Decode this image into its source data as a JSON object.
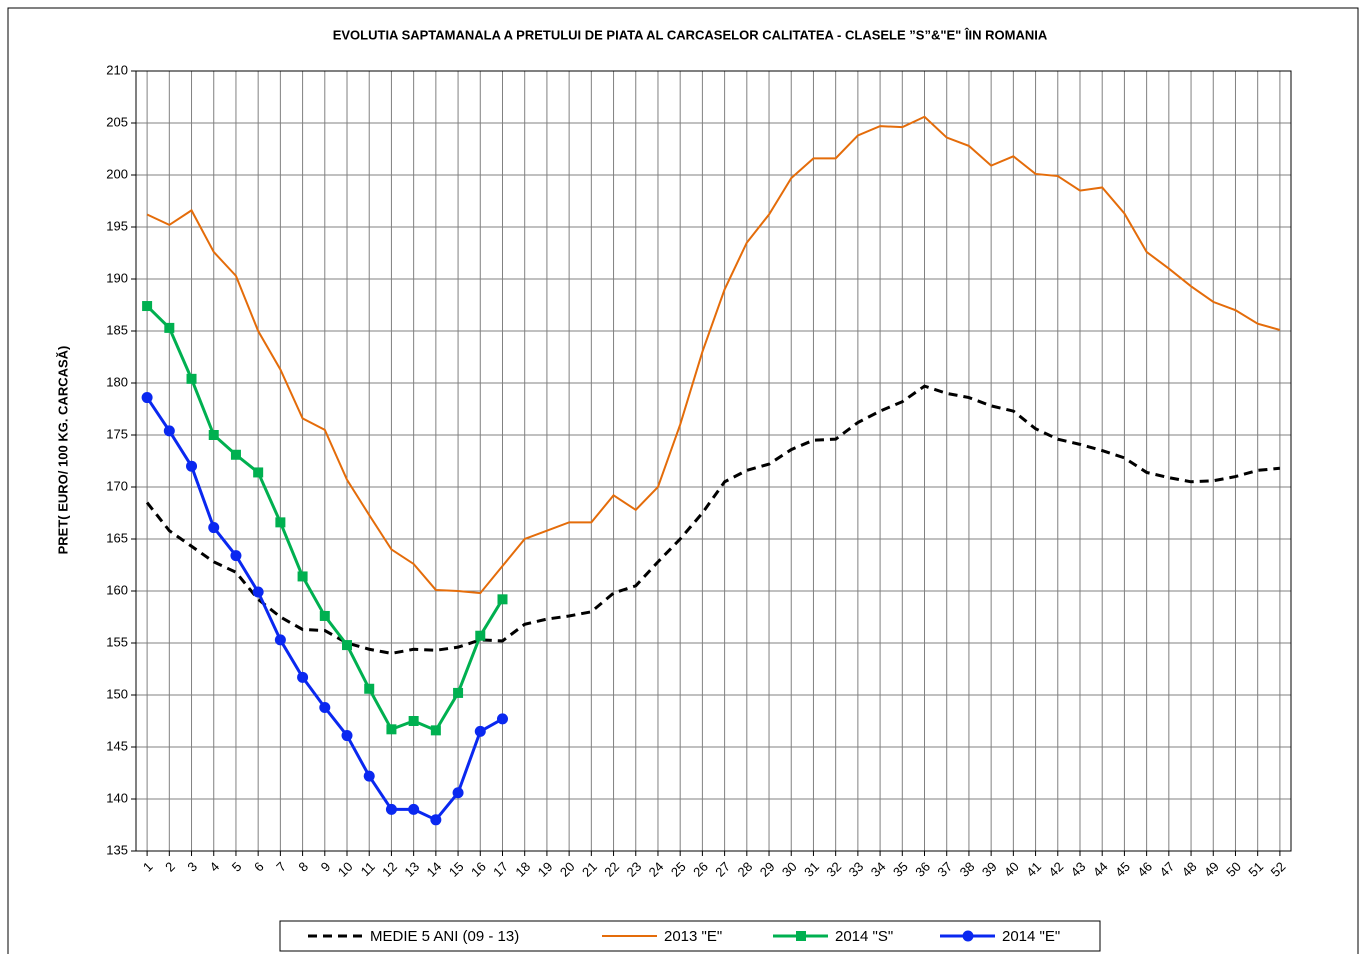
{
  "chart_data": {
    "type": "line",
    "title": "EVOLUTIA SAPTAMANALA  A PRETULUI  DE PIATA  AL CARCASELOR  CALITATEA  - CLASELE ”S”&\"E\"  ÎIN ROMANIA",
    "y_label": "PRET( EURO/ 100 KG. CARCASĂ)",
    "categories": [
      "1",
      "2",
      "3",
      "4",
      "5",
      "6",
      "7",
      "8",
      "9",
      "10",
      "11",
      "12",
      "13",
      "14",
      "15",
      "16",
      "17",
      "18",
      "19",
      "20",
      "21",
      "22",
      "23",
      "24",
      "25",
      "26",
      "27",
      "28",
      "29",
      "30",
      "31",
      "32",
      "33",
      "34",
      "35",
      "36",
      "37",
      "38",
      "39",
      "40",
      "41",
      "42",
      "43",
      "44",
      "45",
      "46",
      "47",
      "48",
      "49",
      "50",
      "51",
      "52"
    ],
    "ylim": [
      135,
      210
    ],
    "yticks": [
      135,
      140,
      145,
      150,
      155,
      160,
      165,
      170,
      175,
      180,
      185,
      190,
      195,
      200,
      205,
      210
    ],
    "grid": true,
    "legend": "bottom",
    "series": [
      {
        "name": "MEDIE 5 ANI (09 - 13)",
        "color": "#000000",
        "dash": true,
        "values": [
          168.5,
          165.8,
          164.3,
          162.8,
          161.8,
          159.2,
          157.5,
          156.3,
          156.2,
          155,
          154.4,
          154,
          154.4,
          154.3,
          154.6,
          155.3,
          155.2,
          156.8,
          157.3,
          157.6,
          158,
          159.8,
          160.5,
          162.8,
          165,
          167.5,
          170.5,
          171.6,
          172.2,
          173.6,
          174.5,
          174.6,
          176.2,
          177.3,
          178.2,
          179.7,
          179,
          178.6,
          177.8,
          177.3,
          175.6,
          174.6,
          174.1,
          173.5,
          172.8,
          171.4,
          170.9,
          170.5,
          170.6,
          171,
          171.6,
          171.8
        ]
      },
      {
        "name": "2013 \"E\"",
        "color": "#E46C0A",
        "values": [
          196.2,
          195.2,
          196.6,
          192.6,
          190.3,
          185,
          181.3,
          176.6,
          175.5,
          170.7,
          167.3,
          164,
          162.6,
          160.1,
          160,
          159.8,
          162.4,
          165,
          165.8,
          166.6,
          166.6,
          169.2,
          167.8,
          170,
          176,
          183,
          189,
          193.5,
          196.2,
          199.7,
          201.6,
          201.6,
          203.8,
          204.7,
          204.6,
          205.6,
          203.6,
          202.8,
          200.9,
          201.8,
          200.1,
          199.9,
          198.5,
          198.8,
          196.3,
          192.6,
          191,
          189.3,
          187.8,
          187,
          185.7,
          185.1
        ]
      },
      {
        "name": "2014 \"S\"",
        "color": "#00B050",
        "marker": "square",
        "values": [
          187.4,
          185.3,
          180.4,
          175,
          173.1,
          171.4,
          166.6,
          161.4,
          157.6,
          154.8,
          150.6,
          146.7,
          147.5,
          146.6,
          150.2,
          155.7,
          159.2,
          null,
          null,
          null,
          null,
          null,
          null,
          null,
          null,
          null,
          null,
          null,
          null,
          null,
          null,
          null,
          null,
          null,
          null,
          null,
          null,
          null,
          null,
          null,
          null,
          null,
          null,
          null,
          null,
          null,
          null,
          null,
          null,
          null,
          null,
          null
        ]
      },
      {
        "name": "2014 \"E\"",
        "color": "#0A28F0",
        "marker": "circle",
        "values": [
          178.6,
          175.4,
          172,
          166.1,
          163.4,
          159.9,
          155.3,
          151.7,
          148.8,
          146.1,
          142.2,
          139,
          139,
          138,
          140.6,
          146.5,
          147.7,
          null,
          null,
          null,
          null,
          null,
          null,
          null,
          null,
          null,
          null,
          null,
          null,
          null,
          null,
          null,
          null,
          null,
          null,
          null,
          null,
          null,
          null,
          null,
          null,
          null,
          null,
          null,
          null,
          null,
          null,
          null,
          null,
          null,
          null,
          null
        ]
      }
    ]
  }
}
